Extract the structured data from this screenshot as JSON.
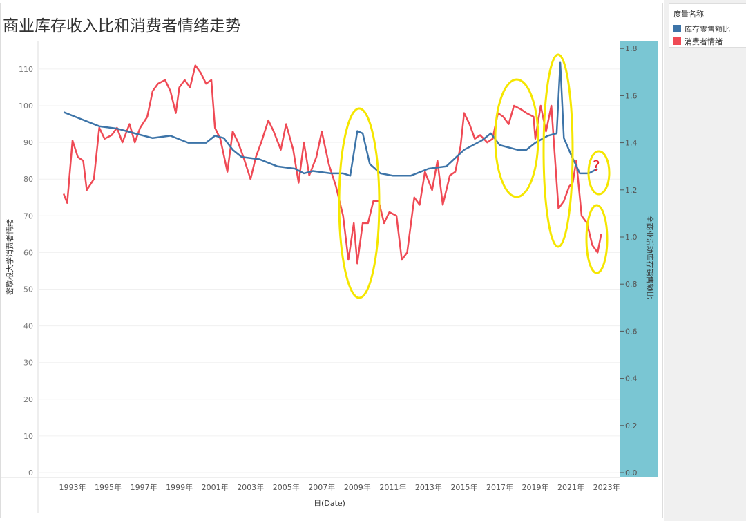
{
  "title": "商业库存收入比和消费者情绪走势",
  "legend": {
    "title": "度量名称",
    "items": [
      {
        "label": "库存零售额比",
        "color": "#3d74a8"
      },
      {
        "label": "消费者情绪",
        "color": "#ef4a55"
      }
    ]
  },
  "chart_data": {
    "type": "line",
    "xlabel": "日(Date)",
    "ylabel_left": "密歇根大学消费者情绪",
    "ylabel_right": "全商业活动库存销售额比",
    "ylim_left": [
      0,
      115
    ],
    "ylim_right": [
      0,
      1.83
    ],
    "xticks": [
      "1993年",
      "1995年",
      "1997年",
      "1999年",
      "2001年",
      "2003年",
      "2005年",
      "2007年",
      "2009年",
      "2011年",
      "2013年",
      "2015年",
      "2017年",
      "2019年",
      "2021年",
      "2023年"
    ],
    "yticks_left": [
      0,
      10,
      20,
      30,
      40,
      50,
      60,
      70,
      80,
      90,
      100,
      110
    ],
    "yticks_right": [
      "0.0",
      "0.2",
      "0.4",
      "0.6",
      "0.8",
      "1.0",
      "1.2",
      "1.4",
      "1.6",
      "1.8"
    ],
    "grid": true,
    "annotation_text": "?",
    "series": [
      {
        "name": "消费者情绪",
        "axis": "left",
        "color": "#ef4a55",
        "x": [
          1992.5,
          1992.7,
          1993.0,
          1993.3,
          1993.6,
          1993.8,
          1994.2,
          1994.5,
          1994.8,
          1995.2,
          1995.5,
          1995.8,
          1996.2,
          1996.5,
          1996.8,
          1997.2,
          1997.5,
          1997.8,
          1998.2,
          1998.5,
          1998.8,
          1999.0,
          1999.3,
          1999.6,
          1999.9,
          2000.2,
          2000.5,
          2000.8,
          2001.0,
          2001.3,
          2001.7,
          2002.0,
          2002.3,
          2002.6,
          2003.0,
          2003.3,
          2003.6,
          2004.0,
          2004.3,
          2004.7,
          2005.0,
          2005.4,
          2005.7,
          2006.0,
          2006.3,
          2006.7,
          2007.0,
          2007.4,
          2007.8,
          2008.2,
          2008.5,
          2008.8,
          2009.0,
          2009.3,
          2009.6,
          2009.9,
          2010.2,
          2010.5,
          2010.8,
          2011.2,
          2011.5,
          2011.8,
          2012.2,
          2012.5,
          2012.8,
          2013.2,
          2013.5,
          2013.8,
          2014.2,
          2014.5,
          2014.8,
          2015.0,
          2015.3,
          2015.6,
          2015.9,
          2016.3,
          2016.6,
          2016.9,
          2017.2,
          2017.5,
          2017.8,
          2018.2,
          2018.5,
          2018.9,
          2019.0,
          2019.3,
          2019.6,
          2019.9,
          2020.3,
          2020.6,
          2020.9,
          2021.1,
          2021.3,
          2021.6,
          2021.9,
          2022.2,
          2022.5,
          2022.7
        ],
        "values": [
          76,
          73.5,
          90.5,
          86,
          85,
          77,
          80,
          94,
          91,
          92,
          94,
          90,
          95,
          90,
          94,
          97,
          104,
          106,
          107,
          104,
          98,
          105,
          107,
          105,
          111,
          109,
          106,
          107,
          94,
          91,
          82,
          93,
          90,
          86,
          80,
          86,
          90,
          96,
          93,
          88,
          95,
          88,
          79,
          90,
          81,
          86,
          93,
          84,
          78,
          70,
          58,
          68,
          57,
          68,
          68,
          74,
          74,
          68,
          71,
          70,
          58,
          60,
          75,
          73,
          82,
          77,
          85,
          73,
          81,
          82,
          89,
          98,
          95,
          91,
          92,
          90,
          91,
          98,
          97,
          95,
          100,
          99,
          98,
          97,
          91,
          100,
          93,
          100,
          72,
          74,
          78,
          79,
          85,
          70,
          68,
          62,
          60,
          65
        ]
      },
      {
        "name": "库存零售额比",
        "axis": "right",
        "color": "#3d74a8",
        "x": [
          1992.5,
          1993.5,
          1994.5,
          1995.5,
          1996.5,
          1997.5,
          1998.5,
          1999.5,
          2000.5,
          2001.0,
          2001.5,
          2002.0,
          2002.5,
          2003.5,
          2004.5,
          2005.5,
          2006.0,
          2006.5,
          2007.5,
          2008.2,
          2008.6,
          2009.0,
          2009.3,
          2009.7,
          2010.3,
          2011.0,
          2012.0,
          2013.0,
          2014.0,
          2015.0,
          2016.0,
          2016.5,
          2017.0,
          2018.0,
          2018.5,
          2019.0,
          2019.7,
          2020.2,
          2020.4,
          2020.6,
          2021.0,
          2021.5,
          2022.0,
          2022.5
        ],
        "values": [
          1.53,
          1.5,
          1.47,
          1.46,
          1.44,
          1.42,
          1.43,
          1.4,
          1.4,
          1.43,
          1.42,
          1.37,
          1.34,
          1.33,
          1.3,
          1.29,
          1.27,
          1.28,
          1.27,
          1.27,
          1.26,
          1.45,
          1.44,
          1.31,
          1.27,
          1.26,
          1.26,
          1.29,
          1.3,
          1.37,
          1.41,
          1.44,
          1.39,
          1.37,
          1.37,
          1.4,
          1.43,
          1.44,
          1.74,
          1.42,
          1.35,
          1.27,
          1.27,
          1.29
        ]
      }
    ]
  }
}
